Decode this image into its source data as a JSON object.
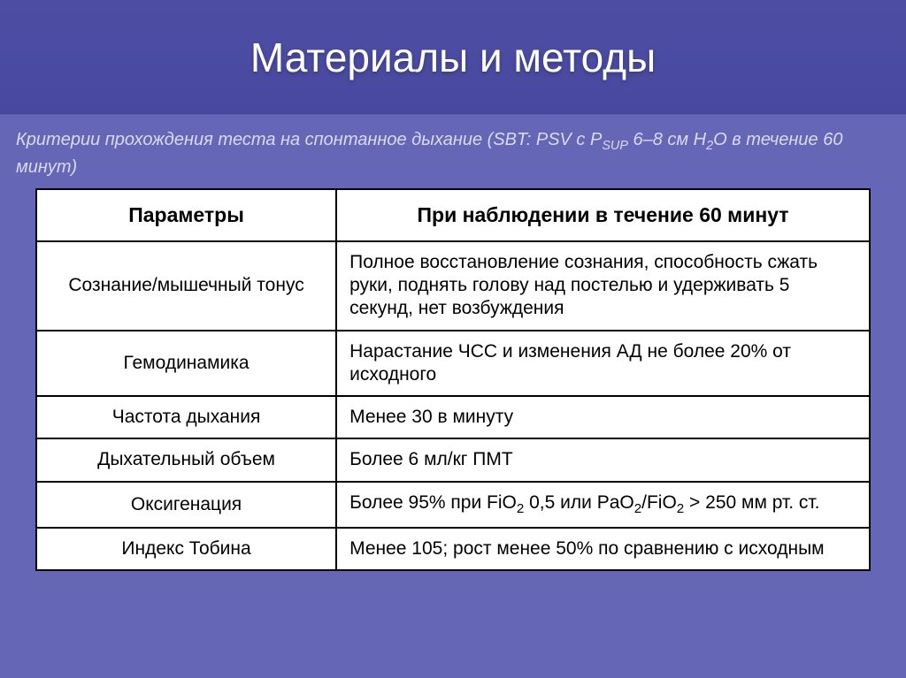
{
  "slide": {
    "title": "Материалы и методы",
    "subtitle_html": "Критерии прохождения теста на спонтанное дыхание (SBT: PSV с P<sub>SUP</sub> 6–8 см H<sub>2</sub>O в течение 60 минут)",
    "background_color": "#6666b7",
    "title_band_color": "#4848a0",
    "title_text_color": "#ffffff",
    "subtitle_text_color": "#d9d9ef",
    "table": {
      "header_col1": "Параметры",
      "header_col2": "При наблюдении в течение 60 минут",
      "border_color": "#000000",
      "cell_background": "#ffffff",
      "text_color": "#000000",
      "header_fontsize": 23,
      "cell_fontsize": 21,
      "col1_width_pct": 36,
      "col1_align": "center",
      "col2_align": "left",
      "rows": [
        {
          "param": "Сознание/мышечный тонус",
          "value": "Полное восстановление сознания, способность сжать руки, поднять голову над постелью и удерживать 5 секунд, нет возбуждения"
        },
        {
          "param": "Гемодинамика",
          "value": "Нарастание ЧСС и изменения АД не более 20% от исходного"
        },
        {
          "param": "Частота дыхания",
          "value": "Менее 30 в минуту"
        },
        {
          "param": "Дыхательный объем",
          "value": "Более 6 мл/кг ПМТ"
        },
        {
          "param": "Оксигенация",
          "value_html": "Более 95% при FiO<sub>2</sub> 0,5 или PaO<sub>2</sub>/FiO<sub>2</sub> > 250 мм рт. ст."
        },
        {
          "param": "Индекс Тобина",
          "value": "Менее 105; рост менее 50% по сравнению с исходным"
        }
      ]
    }
  }
}
